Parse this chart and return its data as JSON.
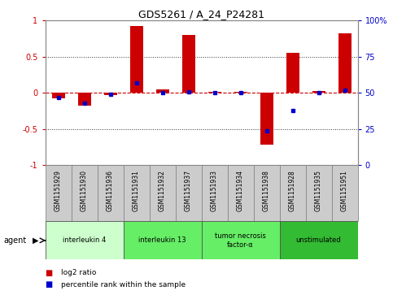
{
  "title": "GDS5261 / A_24_P24281",
  "samples": [
    "GSM1151929",
    "GSM1151930",
    "GSM1151936",
    "GSM1151931",
    "GSM1151932",
    "GSM1151937",
    "GSM1151933",
    "GSM1151934",
    "GSM1151938",
    "GSM1151928",
    "GSM1151935",
    "GSM1151951"
  ],
  "log2_ratio": [
    -0.08,
    -0.18,
    -0.03,
    0.93,
    0.05,
    0.8,
    0.02,
    0.02,
    -0.72,
    0.55,
    0.03,
    0.83
  ],
  "percentile": [
    47,
    43,
    49,
    57,
    50,
    51,
    50,
    50,
    24,
    38,
    50,
    52
  ],
  "ylim": [
    -1,
    1
  ],
  "yticks_left": [
    -1,
    -0.5,
    0,
    0.5,
    1
  ],
  "yticks_right_vals": [
    -1,
    -0.5,
    0,
    0.5,
    1
  ],
  "yticks_right_labels": [
    "0",
    "25",
    "50",
    "75",
    "100%"
  ],
  "hline_dotted": [
    0.5,
    -0.5
  ],
  "hline_dashed": [
    0
  ],
  "bar_color": "#cc0000",
  "dot_color": "#0000cc",
  "zero_line_color": "#cc0000",
  "dotted_line_color": "#333333",
  "agents": [
    {
      "label": "interleukin 4",
      "start": 0,
      "end": 3,
      "color": "#ccffcc"
    },
    {
      "label": "interleukin 13",
      "start": 3,
      "end": 6,
      "color": "#66ee66"
    },
    {
      "label": "tumor necrosis\nfactor-α",
      "start": 6,
      "end": 9,
      "color": "#66ee66"
    },
    {
      "label": "unstimulated",
      "start": 9,
      "end": 12,
      "color": "#33bb33"
    }
  ],
  "legend_red": "log2 ratio",
  "legend_blue": "percentile rank within the sample",
  "ylabel_left_color": "#cc0000",
  "ylabel_right_color": "#0000cc",
  "agent_label": "agent",
  "sample_box_color": "#cccccc",
  "background_color": "#ffffff",
  "bar_width": 0.5
}
